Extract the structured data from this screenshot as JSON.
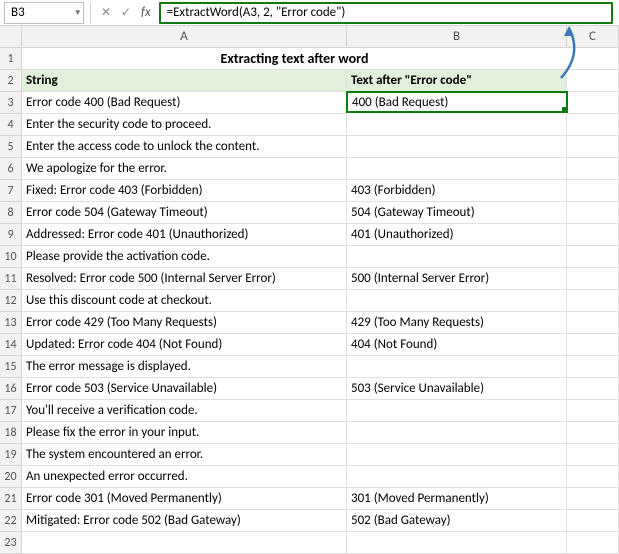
{
  "formula_bar": {
    "name_box": "B3",
    "formula": "=ExtractWord(A3, 2, \"Error code\")"
  },
  "columns": [
    "A",
    "B",
    "C"
  ],
  "title": "Extracting text after word",
  "headers": {
    "col_a": "String",
    "col_b": "Text after \"Error code\""
  },
  "rows": [
    {
      "n": 3,
      "a": "Error code 400 (Bad Request)",
      "b": "400 (Bad Request)"
    },
    {
      "n": 4,
      "a": "Enter the security code to proceed.",
      "b": ""
    },
    {
      "n": 5,
      "a": "Enter the access code to unlock the content.",
      "b": ""
    },
    {
      "n": 6,
      "a": "We apologize for the error.",
      "b": ""
    },
    {
      "n": 7,
      "a": "Fixed: Error code 403 (Forbidden)",
      "b": "403 (Forbidden)"
    },
    {
      "n": 8,
      "a": "Error code 504 (Gateway Timeout)",
      "b": "504 (Gateway Timeout)"
    },
    {
      "n": 9,
      "a": "Addressed: Error code 401 (Unauthorized)",
      "b": "401 (Unauthorized)"
    },
    {
      "n": 10,
      "a": "Please provide the activation code.",
      "b": ""
    },
    {
      "n": 11,
      "a": "Resolved: Error code 500 (Internal Server Error)",
      "b": "500 (Internal Server Error)"
    },
    {
      "n": 12,
      "a": "Use this discount code at checkout.",
      "b": ""
    },
    {
      "n": 13,
      "a": "Error code 429 (Too Many Requests)",
      "b": "429 (Too Many Requests)"
    },
    {
      "n": 14,
      "a": "Updated: Error code 404 (Not Found)",
      "b": "404 (Not Found)"
    },
    {
      "n": 15,
      "a": "The error message is displayed.",
      "b": ""
    },
    {
      "n": 16,
      "a": "Error code 503 (Service Unavailable)",
      "b": "503 (Service Unavailable)"
    },
    {
      "n": 17,
      "a": "You'll receive a verification code.",
      "b": ""
    },
    {
      "n": 18,
      "a": "Please fix the error in your input.",
      "b": ""
    },
    {
      "n": 19,
      "a": "The system encountered an error.",
      "b": ""
    },
    {
      "n": 20,
      "a": "An unexpected error occurred.",
      "b": ""
    },
    {
      "n": 21,
      "a": "Error code 301 (Moved Permanently)",
      "b": "301 (Moved Permanently)"
    },
    {
      "n": 22,
      "a": "Mitigated: Error code 502 (Bad Gateway)",
      "b": "502 (Bad Gateway)"
    },
    {
      "n": 23,
      "a": "",
      "b": ""
    }
  ],
  "selected_cell": "B3",
  "colors": {
    "selection_border": "#0f7b0f",
    "header_fill": "#e2efda",
    "grid_line": "#e0e0e0",
    "arrow": "#3a7ab8"
  }
}
